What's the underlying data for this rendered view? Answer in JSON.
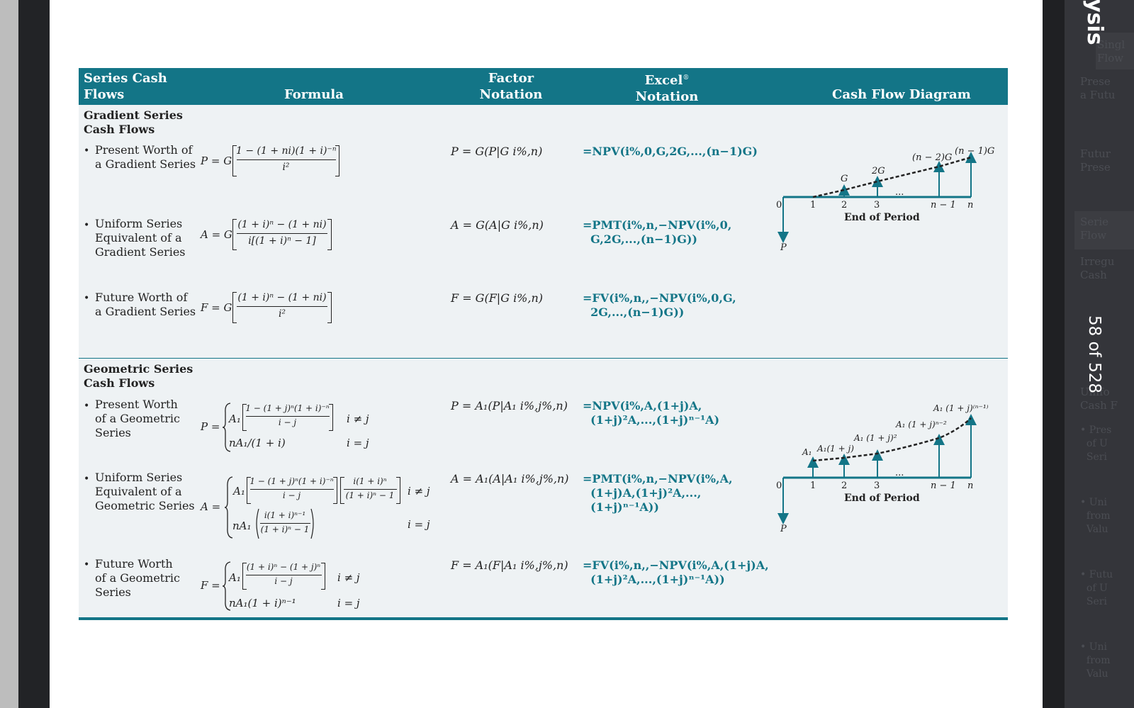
{
  "viewer": {
    "side_title": "ysis",
    "page_indicator": "58 of 528",
    "ghost_items": [
      "Singl",
      "Flow",
      "Prese",
      "a Futu",
      "Futur",
      "Prese",
      "Serie",
      "Flow",
      "Irregu",
      "Cash",
      "Unifo",
      "Cash F",
      "Pres",
      "of U",
      "Seri",
      "Uni",
      "from",
      "Valu",
      "Futu",
      "of U",
      "Seri",
      "Uni",
      "from",
      "Valu"
    ]
  },
  "table": {
    "headers": {
      "series": [
        "Series Cash",
        "Flows"
      ],
      "formula": "Formula",
      "factor": [
        "Factor",
        "Notation"
      ],
      "excel": [
        "Excel",
        "Notation"
      ],
      "excel_mark": "®",
      "diagram": "Cash Flow Diagram"
    },
    "gradient": {
      "section": [
        "Gradient Series",
        "Cash Flows"
      ],
      "rows": [
        {
          "label": [
            "Present Worth of",
            "a Gradient Series"
          ],
          "lhs": "P = G",
          "num": "1 − (1 + ni)(1 + i)⁻ⁿ",
          "den": "i²",
          "factor": "P = G(P|G i%,n)",
          "excel": "=NPV(i%,0,G,2G,...,(n−1)G)"
        },
        {
          "label": [
            "Uniform Series",
            "Equivalent of a",
            "Gradient Series"
          ],
          "lhs": "A = G",
          "num": "(1 + i)ⁿ − (1 + ni)",
          "den": "i[(1 + i)ⁿ − 1]",
          "factor": "A = G(A|G i%,n)",
          "excel": "=PMT(i%,n,−NPV(i%,0,\n  G,2G,...,(n−1)G))"
        },
        {
          "label": [
            "Future Worth of",
            "a Gradient Series"
          ],
          "lhs": "F = G",
          "num": "(1 + i)ⁿ − (1 + ni)",
          "den": "i²",
          "factor": "F = G(F|G i%,n)",
          "excel": "=FV(i%,n,,−NPV(i%,0,G,\n  2G,...,(n−1)G))"
        }
      ],
      "diagram": {
        "zero": "0",
        "ticks": [
          "1",
          "2",
          "3",
          "n − 1",
          "n"
        ],
        "dots": "...",
        "arrow_labels": [
          "G",
          "2G",
          "(n − 2)G",
          "(n − 1)G"
        ],
        "axis_title": "End of Period",
        "p_label": "P"
      }
    },
    "geometric": {
      "section": [
        "Geometric Series",
        "Cash Flows"
      ],
      "rows": [
        {
          "label": [
            "Present Worth",
            "of a Geometric",
            "Series"
          ],
          "lhs": "P =",
          "case1_coef": "A₁",
          "case1_num": "1 − (1 + j)ⁿ(1 + i)⁻ⁿ",
          "case1_den": "i − j",
          "case1_cond": "i ≠ j",
          "case2": "nA₁/(1 + i)",
          "case2_cond": "i = j",
          "factor": "P = A₁(P|A₁ i%,j%,n)",
          "excel": "=NPV(i%,A,(1+j)A,\n  (1+j)²A,...,(1+j)ⁿ⁻¹A)"
        },
        {
          "label": [
            "Uniform Series",
            "Equivalent of a",
            "Geometric Series"
          ],
          "lhs": "A =",
          "case1_coef": "A₁",
          "case1_num": "1 − (1 + j)ⁿ(1 + i)⁻ⁿ",
          "case1_den": "i − j",
          "case1_num2": "i(1 + i)ⁿ",
          "case1_den2": "(1 + i)ⁿ − 1",
          "case1_cond": "i ≠ j",
          "case2_coef": "nA₁",
          "case2_num": "i(1 + i)ⁿ⁻¹",
          "case2_den": "(1 + i)ⁿ − 1",
          "case2_cond": "i = j",
          "factor": "A = A₁(A|A₁ i%,j%,n)",
          "excel": "=PMT(i%,n,−NPV(i%,A,\n  (1+j)A,(1+j)²A,...,\n  (1+j)ⁿ⁻¹A))"
        },
        {
          "label": [
            "Future Worth",
            "of a Geometric",
            "Series"
          ],
          "lhs": "F =",
          "case1_coef": "A₁",
          "case1_num": "(1 + i)ⁿ − (1 + j)ⁿ",
          "case1_den": "i − j",
          "case1_cond": "i ≠ j",
          "case2": "nA₁(1 + i)ⁿ⁻¹",
          "case2_cond": "i = j",
          "factor": "F = A₁(F|A₁ i%,j%,n)",
          "excel": "=FV(i%,n,,−NPV(i%,A,(1+j)A,\n  (1+j)²A,...,(1+j)ⁿ⁻¹A))"
        }
      ],
      "diagram": {
        "zero": "0",
        "ticks": [
          "1",
          "2",
          "3",
          "n − 1",
          "n"
        ],
        "dots": "...",
        "arrow_labels": [
          "A₁",
          "A₁(1 + j)",
          "A₁ (1 + j)²",
          "A₁ (1 + j)ⁿ⁻²",
          "A₁ (1 + j)⁽ⁿ⁻¹⁾"
        ],
        "axis_title": "End of Period",
        "p_label": "P"
      }
    }
  }
}
